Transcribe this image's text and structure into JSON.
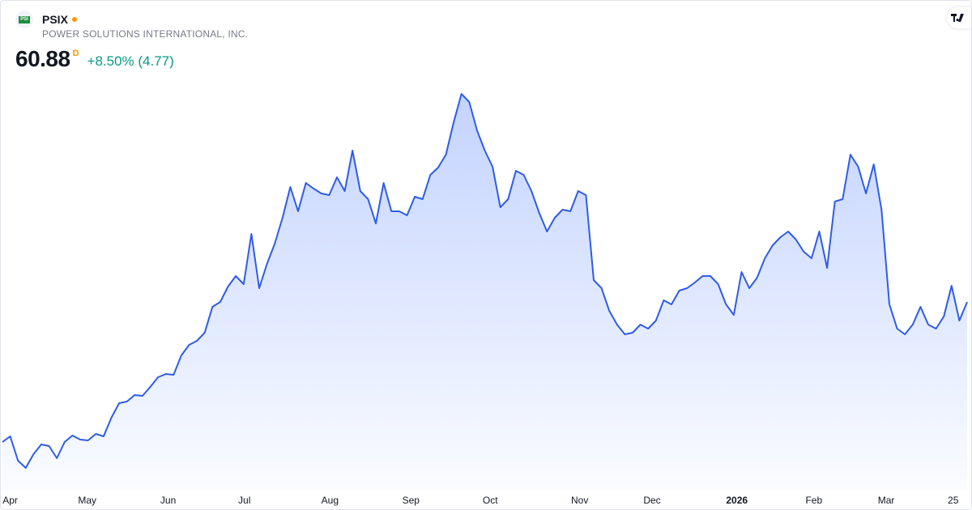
{
  "header": {
    "logo": "PSI",
    "symbol": "PSIX",
    "company": "POWER SOLUTIONS INTERNATIONAL, INC.",
    "price": 60.88,
    "interval": "D",
    "change": "+8.50% (4.77)"
  },
  "chart_data": {
    "type": "area",
    "color": "#2f5ce6",
    "values": [
      25.07,
      26.52,
      20.31,
      18.44,
      21.96,
      24.45,
      24.03,
      20.93,
      25.07,
      26.72,
      25.69,
      25.48,
      27.14,
      26.52,
      31.28,
      35.0,
      35.42,
      37.07,
      36.87,
      39.14,
      41.63,
      42.46,
      42.25,
      47.22,
      49.91,
      50.94,
      53.01,
      59.64,
      60.88,
      64.81,
      67.5,
      65.43,
      78.27,
      64.4,
      70.61,
      75.78,
      82.41,
      90.27,
      84.06,
      91.31,
      89.86,
      88.62,
      88.2,
      92.76,
      89.24,
      99.59,
      89.24,
      87.17,
      80.96,
      91.31,
      84.06,
      84.06,
      83.03,
      87.79,
      87.17,
      93.38,
      95.24,
      98.55,
      106.83,
      114.08,
      112.01,
      104.76,
      99.59,
      95.45,
      85.1,
      87.17,
      94.41,
      93.38,
      89.24,
      83.65,
      78.89,
      82.41,
      84.48,
      84.06,
      89.24,
      88.2,
      66.47,
      64.4,
      58.6,
      55.08,
      52.6,
      53.01,
      55.08,
      54.05,
      56.12,
      61.29,
      60.26,
      63.78,
      64.4,
      65.85,
      67.5,
      67.5,
      65.43,
      60.26,
      57.57,
      68.54,
      64.4,
      67.09,
      72.06,
      75.37,
      77.44,
      78.89,
      76.82,
      73.71,
      72.06,
      78.89,
      69.57,
      86.55,
      87.17,
      98.55,
      95.45,
      88.62,
      96.07,
      84.48,
      60.26,
      54.05,
      52.6,
      55.08,
      59.64,
      55.08,
      54.05,
      57.15,
      65.02,
      56.11,
      60.88
    ],
    "xlim": [
      0,
      124
    ],
    "xticks": [
      {
        "value": 1.0,
        "label": "Apr"
      },
      {
        "value": 10.9,
        "label": "May"
      },
      {
        "value": 21.3,
        "label": "Jun"
      },
      {
        "value": 31.1,
        "label": "Jul"
      },
      {
        "value": 42.1,
        "label": "Aug"
      },
      {
        "value": 52.5,
        "label": "Sep"
      },
      {
        "value": 62.7,
        "label": "Oct"
      },
      {
        "value": 74.2,
        "label": "Nov"
      },
      {
        "value": 83.5,
        "label": "Dec"
      },
      {
        "value": 94.4,
        "label": "2026",
        "bold": true
      },
      {
        "value": 104.3,
        "label": "Feb"
      },
      {
        "value": 113.6,
        "label": "Mar"
      },
      {
        "value": 122.2,
        "label": "25"
      }
    ],
    "ylim": [
      12.65,
      119.25
    ]
  }
}
